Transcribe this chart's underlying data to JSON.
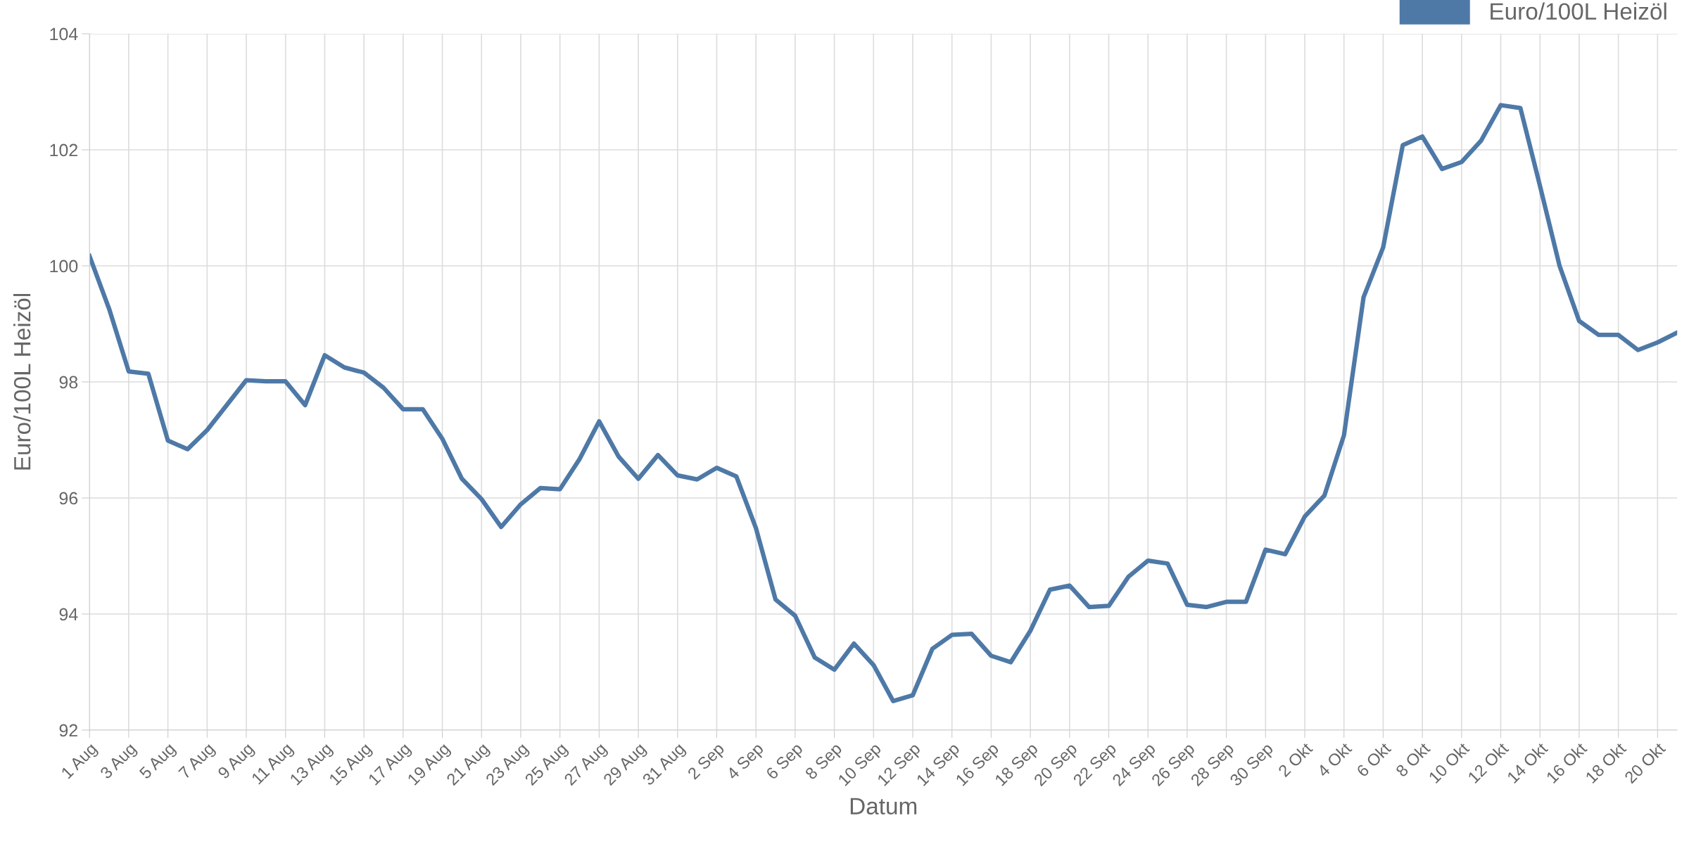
{
  "chart_data": {
    "type": "line",
    "xlabel": "Datum",
    "ylabel": "Euro/100L Heizöl",
    "categories": [
      "1 Aug",
      null,
      "3 Aug",
      null,
      "5 Aug",
      null,
      "7 Aug",
      null,
      "9 Aug",
      null,
      "11 Aug",
      null,
      "13 Aug",
      null,
      "15 Aug",
      null,
      "17 Aug",
      null,
      "19 Aug",
      null,
      "21 Aug",
      null,
      "23 Aug",
      null,
      "25 Aug",
      null,
      "27 Aug",
      null,
      "29 Aug",
      null,
      "31 Aug",
      null,
      "2 Sep",
      null,
      "4 Sep",
      null,
      "6 Sep",
      null,
      "8 Sep",
      null,
      "10 Sep",
      null,
      "12 Sep",
      null,
      "14 Sep",
      null,
      "16 Sep",
      null,
      "18 Sep",
      null,
      "20 Sep",
      null,
      "22 Sep",
      null,
      "24 Sep",
      null,
      "26 Sep",
      null,
      "28 Sep",
      null,
      "30 Sep",
      null,
      "2 Okt",
      null,
      "4 Okt",
      null,
      "6 Okt",
      null,
      "8 Okt",
      null,
      "10 Okt",
      null,
      "12 Okt",
      null,
      "14 Okt",
      null,
      "16 Okt",
      null,
      "18 Okt",
      null,
      "20 Okt",
      null
    ],
    "series": [
      {
        "name": "Euro/100L Heizöl",
        "color": "#4e79a7",
        "values": [
          100.17,
          99.26,
          98.18,
          98.14,
          96.99,
          96.84,
          97.17,
          97.6,
          98.03,
          98.01,
          98.01,
          97.6,
          98.46,
          98.25,
          98.16,
          97.9,
          97.53,
          97.53,
          97.02,
          96.33,
          95.98,
          95.5,
          95.89,
          96.17,
          96.15,
          96.67,
          97.32,
          96.71,
          96.33,
          96.74,
          96.39,
          96.32,
          96.52,
          96.37,
          95.48,
          94.25,
          93.97,
          93.25,
          93.04,
          93.49,
          93.12,
          92.5,
          92.6,
          93.4,
          93.64,
          93.66,
          93.28,
          93.17,
          93.71,
          94.42,
          94.49,
          94.12,
          94.14,
          94.64,
          94.92,
          94.87,
          94.16,
          94.12,
          94.21,
          94.21,
          95.11,
          95.03,
          95.68,
          96.04,
          97.08,
          99.46,
          100.32,
          102.08,
          102.23,
          101.67,
          101.79,
          102.16,
          102.77,
          102.72,
          101.38,
          100.0,
          99.05,
          98.81,
          98.81,
          98.55,
          98.68,
          98.85
        ]
      }
    ],
    "ylim": [
      92,
      104
    ],
    "yticks": [
      92,
      94,
      96,
      98,
      100,
      102,
      104
    ],
    "grid": true,
    "legend": "top right",
    "marker": "none",
    "line_style": "solid"
  }
}
